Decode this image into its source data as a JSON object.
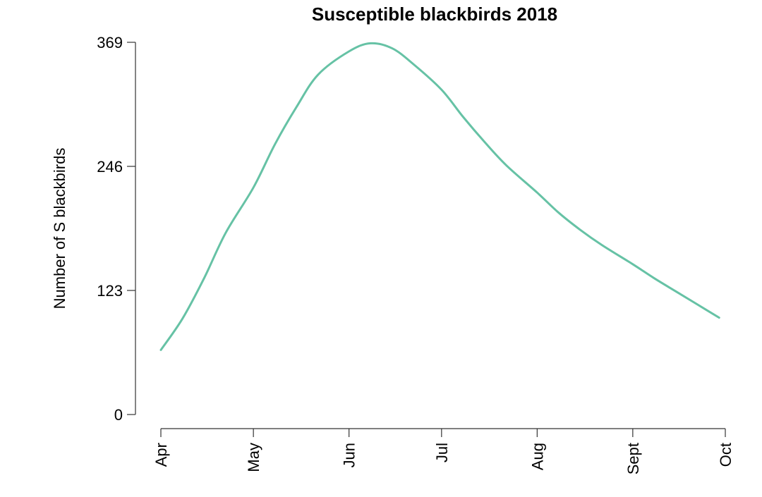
{
  "chart_data": {
    "type": "line",
    "title": "Susceptible blackbirds 2018",
    "xlabel": "",
    "ylabel": "Number of S blackbirds",
    "x_ticks": [
      "Apr",
      "May",
      "Jun",
      "Jul",
      "Aug",
      "Sept",
      "Oct"
    ],
    "x_tick_dates": [
      "2018-04-01",
      "2018-05-01",
      "2018-06-01",
      "2018-07-01",
      "2018-08-01",
      "2018-09-01",
      "2018-10-01"
    ],
    "y_ticks": [
      "0",
      "123",
      "246",
      "369"
    ],
    "ylim": [
      0,
      369
    ],
    "xlim": [
      "2018-04-01",
      "2018-10-01"
    ],
    "grid": false,
    "series": [
      {
        "color": "#66c2a5",
        "points": [
          {
            "x": "2018-04-01",
            "y": 64
          },
          {
            "x": "2018-04-08",
            "y": 95
          },
          {
            "x": "2018-04-15",
            "y": 135
          },
          {
            "x": "2018-04-22",
            "y": 180
          },
          {
            "x": "2018-05-01",
            "y": 225
          },
          {
            "x": "2018-05-08",
            "y": 268
          },
          {
            "x": "2018-05-15",
            "y": 305
          },
          {
            "x": "2018-05-22",
            "y": 337
          },
          {
            "x": "2018-06-01",
            "y": 360
          },
          {
            "x": "2018-06-08",
            "y": 368
          },
          {
            "x": "2018-06-15",
            "y": 363
          },
          {
            "x": "2018-06-22",
            "y": 347
          },
          {
            "x": "2018-07-01",
            "y": 322
          },
          {
            "x": "2018-07-08",
            "y": 295
          },
          {
            "x": "2018-07-15",
            "y": 270
          },
          {
            "x": "2018-07-22",
            "y": 247
          },
          {
            "x": "2018-08-01",
            "y": 220
          },
          {
            "x": "2018-08-08",
            "y": 200
          },
          {
            "x": "2018-08-15",
            "y": 183
          },
          {
            "x": "2018-08-22",
            "y": 168
          },
          {
            "x": "2018-09-01",
            "y": 149
          },
          {
            "x": "2018-09-08",
            "y": 135
          },
          {
            "x": "2018-09-15",
            "y": 122
          },
          {
            "x": "2018-09-22",
            "y": 109
          },
          {
            "x": "2018-09-29",
            "y": 96
          }
        ]
      }
    ]
  }
}
